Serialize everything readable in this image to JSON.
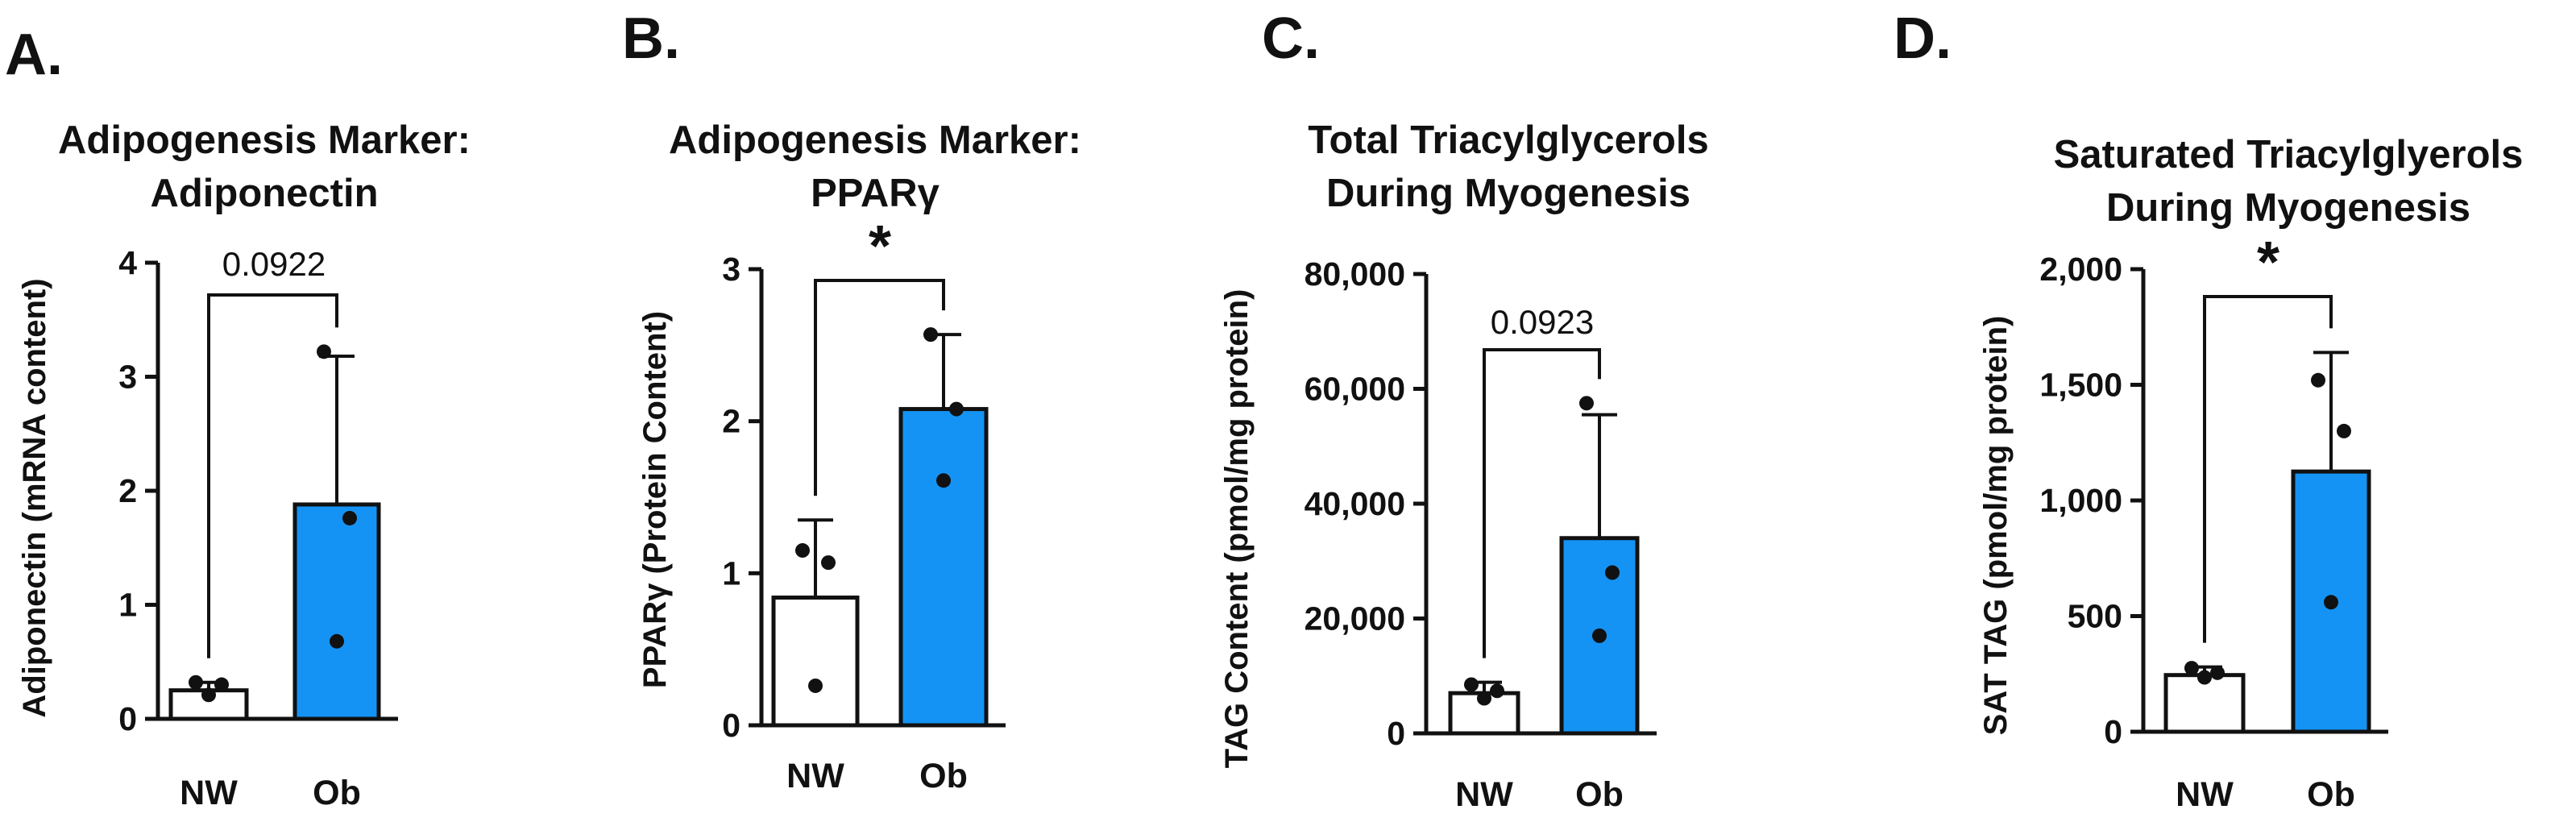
{
  "figure_description_colors": {
    "nw_fill": "#ffffff",
    "ob_fill": "#1493f4",
    "stroke": "#111111"
  },
  "chart_data": [
    {
      "panel": "A.",
      "type": "bar",
      "title_lines": [
        "Adipogenesis Marker:",
        "Adiponectin"
      ],
      "ylabel": "Adiponectin (mRNA content)",
      "categories": [
        "NW",
        "Ob"
      ],
      "values": [
        0.25,
        1.88
      ],
      "error_upper": [
        0.32,
        3.18
      ],
      "points": [
        [
          0.32,
          0.3,
          0.21
        ],
        [
          3.22,
          1.76,
          0.68
        ]
      ],
      "ylim": [
        0,
        4
      ],
      "yticks": [
        0,
        1,
        2,
        3,
        4
      ],
      "ytick_labels": [
        "0",
        "1",
        "2",
        "3",
        "4"
      ],
      "annotation": "0.0922",
      "annotation_type": "text"
    },
    {
      "panel": "B.",
      "type": "bar",
      "title_lines": [
        "Adipogenesis Marker:",
        "PPARγ"
      ],
      "ylabel": "PPARγ (Protein Content)",
      "categories": [
        "NW",
        "Ob"
      ],
      "values": [
        0.84,
        2.08
      ],
      "error_upper": [
        1.35,
        2.57
      ],
      "points": [
        [
          1.15,
          1.07,
          0.26
        ],
        [
          2.57,
          2.08,
          1.61
        ]
      ],
      "ylim": [
        0,
        3
      ],
      "yticks": [
        0,
        1,
        2,
        3
      ],
      "ytick_labels": [
        "0",
        "1",
        "2",
        "3"
      ],
      "annotation": "*",
      "annotation_type": "star"
    },
    {
      "panel": "C.",
      "type": "bar",
      "title_lines": [
        "Total Triacylglycerols",
        "During Myogenesis"
      ],
      "ylabel": "TAG Content (pmol/mg protein)",
      "categories": [
        "NW",
        "Ob"
      ],
      "values": [
        7000,
        34000
      ],
      "error_upper": [
        8900,
        55500
      ],
      "points": [
        [
          8500,
          7400,
          6100
        ],
        [
          57500,
          28000,
          17000
        ]
      ],
      "ylim": [
        0,
        80000
      ],
      "yticks": [
        0,
        20000,
        40000,
        60000,
        80000
      ],
      "ytick_labels": [
        "0",
        "20,000",
        "40,000",
        "60,000",
        "80,000"
      ],
      "annotation": "0.0923",
      "annotation_type": "text"
    },
    {
      "panel": "D.",
      "type": "bar",
      "title_lines": [
        "Saturated Triacylglyerols",
        "During Myogenesis"
      ],
      "ylabel": "SAT TAG (pmol/mg protein)",
      "categories": [
        "NW",
        "Ob"
      ],
      "values": [
        245,
        1125
      ],
      "error_upper": [
        280,
        1640
      ],
      "points": [
        [
          275,
          255,
          235
        ],
        [
          1520,
          1300,
          560
        ]
      ],
      "ylim": [
        0,
        2000
      ],
      "yticks": [
        0,
        500,
        1000,
        1500,
        2000
      ],
      "ytick_labels": [
        "0",
        "500",
        "1,000",
        "1,500",
        "2,000"
      ],
      "annotation": "*",
      "annotation_type": "star"
    }
  ]
}
